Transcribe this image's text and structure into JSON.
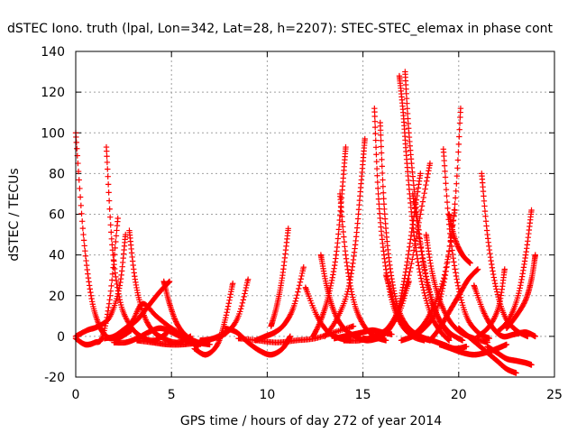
{
  "chart_data": {
    "type": "scatter",
    "title": "dSTEC Iono. truth (lpal, Lon=342, Lat=28, h=2207): STEC-STEC_elemax in phase cont",
    "xlabel": "GPS time / hours of day 272 of year 2014",
    "ylabel": "dSTEC  / TECUs",
    "xlim": [
      0,
      25
    ],
    "ylim": [
      -20,
      140
    ],
    "xticks": [
      "0",
      "5",
      "10",
      "15",
      "20",
      "25"
    ],
    "yticks": [
      "-20",
      "0",
      "20",
      "40",
      "60",
      "80",
      "100",
      "120",
      "140"
    ],
    "grid": true,
    "marker": "plus",
    "color": "#ff0000",
    "arcs": [
      {
        "x": [
          0.0,
          0.4,
          0.8,
          1.2,
          1.6,
          2.0,
          2.4,
          2.9
        ],
        "y": [
          100,
          50,
          20,
          6,
          0,
          -1,
          0,
          3
        ]
      },
      {
        "x": [
          0.0,
          0.5,
          1.0,
          1.4,
          1.8,
          2.2
        ],
        "y": [
          -1,
          -4,
          -3,
          0,
          20,
          58
        ]
      },
      {
        "x": [
          0.0,
          0.6,
          1.2,
          1.8,
          2.3,
          2.6
        ],
        "y": [
          0,
          3,
          5,
          10,
          25,
          50
        ]
      },
      {
        "x": [
          1.6,
          1.9,
          2.3,
          2.8,
          3.4,
          4.1,
          4.8
        ],
        "y": [
          93,
          45,
          18,
          6,
          0,
          -2,
          2
        ]
      },
      {
        "x": [
          1.5,
          2.0,
          2.6,
          3.2,
          3.8,
          4.4,
          4.9
        ],
        "y": [
          -1,
          0,
          4,
          8,
          15,
          22,
          27
        ]
      },
      {
        "x": [
          2.8,
          3.1,
          3.5,
          4.0,
          4.6,
          5.3,
          6.0
        ],
        "y": [
          52,
          28,
          12,
          3,
          -1,
          -3,
          0
        ]
      },
      {
        "x": [
          2.0,
          2.6,
          3.2,
          3.8,
          4.4,
          5.0,
          5.8,
          6.4
        ],
        "y": [
          -3,
          -3,
          -1,
          2,
          4,
          2,
          -2,
          -5
        ]
      },
      {
        "x": [
          2.2,
          2.6,
          3.0,
          3.5,
          4.2,
          5.0,
          5.8
        ],
        "y": [
          0,
          2,
          8,
          16,
          10,
          4,
          0
        ]
      },
      {
        "x": [
          4.6,
          4.9,
          5.3,
          5.8,
          6.4,
          7.0
        ],
        "y": [
          27,
          16,
          6,
          0,
          -3,
          -4
        ]
      },
      {
        "x": [
          3.2,
          4.0,
          4.8,
          5.6,
          6.4,
          7.2,
          8.0
        ],
        "y": [
          -2,
          -3,
          -4,
          -4,
          -3,
          -1,
          3
        ]
      },
      {
        "x": [
          6.2,
          6.8,
          7.4,
          7.8,
          8.2
        ],
        "y": [
          -6,
          -9,
          -4,
          8,
          26
        ]
      },
      {
        "x": [
          6.5,
          7.2,
          7.9,
          8.5,
          9.0
        ],
        "y": [
          -2,
          -1,
          2,
          10,
          28
        ]
      },
      {
        "x": [
          7.8,
          8.4,
          9.0,
          9.6,
          10.2,
          10.8,
          11.2
        ],
        "y": [
          4,
          2,
          -3,
          -7,
          -9,
          -6,
          0
        ]
      },
      {
        "x": [
          9.4,
          9.9,
          10.4,
          10.9,
          11.4,
          11.9
        ],
        "y": [
          -2,
          0,
          2,
          6,
          15,
          34
        ]
      },
      {
        "x": [
          10.2,
          10.5,
          10.8,
          11.1
        ],
        "y": [
          5,
          15,
          30,
          53
        ]
      },
      {
        "x": [
          8.5,
          9.5,
          10.5,
          11.5,
          12.5,
          13.5,
          14.5
        ],
        "y": [
          -1,
          -2,
          -3,
          -2,
          -1,
          2,
          5
        ]
      },
      {
        "x": [
          12.0,
          12.6,
          13.2,
          13.8,
          14.4
        ],
        "y": [
          24,
          10,
          2,
          -1,
          -2
        ]
      },
      {
        "x": [
          12.8,
          13.1,
          13.5,
          14.0,
          14.6,
          15.2,
          15.8
        ],
        "y": [
          40,
          25,
          12,
          4,
          0,
          -2,
          -1
        ]
      },
      {
        "x": [
          12.4,
          12.8,
          13.2,
          13.6,
          13.9,
          14.1
        ],
        "y": [
          0,
          8,
          20,
          40,
          70,
          93
        ]
      },
      {
        "x": [
          13.8,
          14.1,
          14.5,
          15.0,
          15.6,
          16.2
        ],
        "y": [
          70,
          40,
          18,
          6,
          0,
          -2
        ]
      },
      {
        "x": [
          13.0,
          13.6,
          14.2,
          14.6,
          14.9,
          15.1
        ],
        "y": [
          0,
          8,
          22,
          45,
          75,
          97
        ]
      },
      {
        "x": [
          14.0,
          14.8,
          15.6,
          16.3,
          16.9,
          17.4
        ],
        "y": [
          -2,
          -2,
          0,
          4,
          12,
          27
        ]
      },
      {
        "x": [
          15.0,
          15.6,
          16.2,
          16.8,
          17.4,
          18.0,
          18.5
        ],
        "y": [
          -1,
          -1,
          3,
          12,
          30,
          60,
          85
        ]
      },
      {
        "x": [
          15.6,
          15.8,
          16.1,
          16.5,
          17.0,
          17.6,
          18.2
        ],
        "y": [
          112,
          70,
          40,
          18,
          6,
          0,
          -2
        ]
      },
      {
        "x": [
          15.9,
          16.1,
          16.4,
          16.8,
          17.3,
          17.9,
          18.5
        ],
        "y": [
          105,
          65,
          35,
          15,
          5,
          0,
          -2
        ]
      },
      {
        "x": [
          16.9,
          17.1,
          17.3,
          17.6,
          18.0,
          18.5,
          19.0,
          19.5
        ],
        "y": [
          128,
          110,
          85,
          55,
          30,
          12,
          3,
          -2
        ]
      },
      {
        "x": [
          17.2,
          17.4,
          17.7,
          18.1,
          18.6,
          19.1,
          19.6
        ],
        "y": [
          130,
          100,
          70,
          40,
          18,
          6,
          0
        ]
      },
      {
        "x": [
          16.0,
          16.4,
          16.8,
          17.2,
          17.6,
          18.0
        ],
        "y": [
          0,
          4,
          12,
          30,
          55,
          80
        ]
      },
      {
        "x": [
          16.2,
          16.8,
          17.4,
          18.0,
          18.6,
          19.2,
          19.8,
          20.4
        ],
        "y": [
          30,
          12,
          4,
          0,
          -2,
          -4,
          -6,
          -5
        ]
      },
      {
        "x": [
          17.6,
          18.0,
          18.4,
          18.9,
          19.5,
          20.2
        ],
        "y": [
          70,
          45,
          24,
          10,
          2,
          -2
        ]
      },
      {
        "x": [
          18.3,
          18.6,
          19.0,
          19.5,
          20.1,
          20.8,
          21.5
        ],
        "y": [
          50,
          32,
          18,
          8,
          2,
          -1,
          -3
        ]
      },
      {
        "x": [
          17.0,
          17.6,
          18.2,
          18.8,
          19.3,
          19.8
        ],
        "y": [
          -2,
          0,
          4,
          12,
          30,
          62
        ]
      },
      {
        "x": [
          19.2,
          19.5,
          19.9,
          20.4,
          21.0,
          21.6
        ],
        "y": [
          92,
          55,
          28,
          10,
          2,
          -1
        ]
      },
      {
        "x": [
          17.5,
          18.1,
          18.7,
          19.3,
          19.8,
          20.1
        ],
        "y": [
          0,
          5,
          15,
          32,
          65,
          112
        ]
      },
      {
        "x": [
          19.5,
          19.8,
          20.2,
          20.6
        ],
        "y": [
          60,
          48,
          40,
          36
        ]
      },
      {
        "x": [
          20.0,
          20.5,
          21.0,
          21.5,
          22.0,
          22.5,
          23.0
        ],
        "y": [
          4,
          0,
          -4,
          -8,
          -12,
          -16,
          -18
        ]
      },
      {
        "x": [
          19.0,
          19.6,
          20.2,
          20.8,
          21.4,
          22.0,
          22.5
        ],
        "y": [
          -4,
          -6,
          -8,
          -9,
          -8,
          -6,
          -4
        ]
      },
      {
        "x": [
          21.2,
          21.5,
          21.9,
          22.4,
          23.0,
          23.6
        ],
        "y": [
          80,
          50,
          26,
          10,
          3,
          0
        ]
      },
      {
        "x": [
          20.8,
          21.3,
          21.8,
          22.3,
          22.9,
          23.5,
          24.0
        ],
        "y": [
          25,
          12,
          4,
          0,
          1,
          2,
          0
        ]
      },
      {
        "x": [
          21.0,
          21.6,
          22.1,
          22.4
        ],
        "y": [
          0,
          5,
          15,
          33
        ]
      },
      {
        "x": [
          21.5,
          22.0,
          22.5,
          23.0,
          23.5,
          23.8
        ],
        "y": [
          -5,
          -8,
          -11,
          -12,
          -13,
          -14
        ]
      },
      {
        "x": [
          22.0,
          22.6,
          23.1,
          23.5,
          23.8
        ],
        "y": [
          2,
          8,
          20,
          40,
          62
        ]
      },
      {
        "x": [
          22.5,
          23.0,
          23.5,
          23.8,
          24.0
        ],
        "y": [
          4,
          10,
          18,
          28,
          40
        ]
      },
      {
        "x": [
          18.5,
          19.0,
          19.5,
          20.0,
          20.5,
          21.0
        ],
        "y": [
          -2,
          4,
          12,
          20,
          28,
          33
        ]
      },
      {
        "x": [
          13.5,
          14.0,
          14.5,
          15.0,
          15.5,
          16.0,
          16.5
        ],
        "y": [
          -1,
          0,
          1,
          2,
          3,
          2,
          1
        ]
      }
    ]
  }
}
